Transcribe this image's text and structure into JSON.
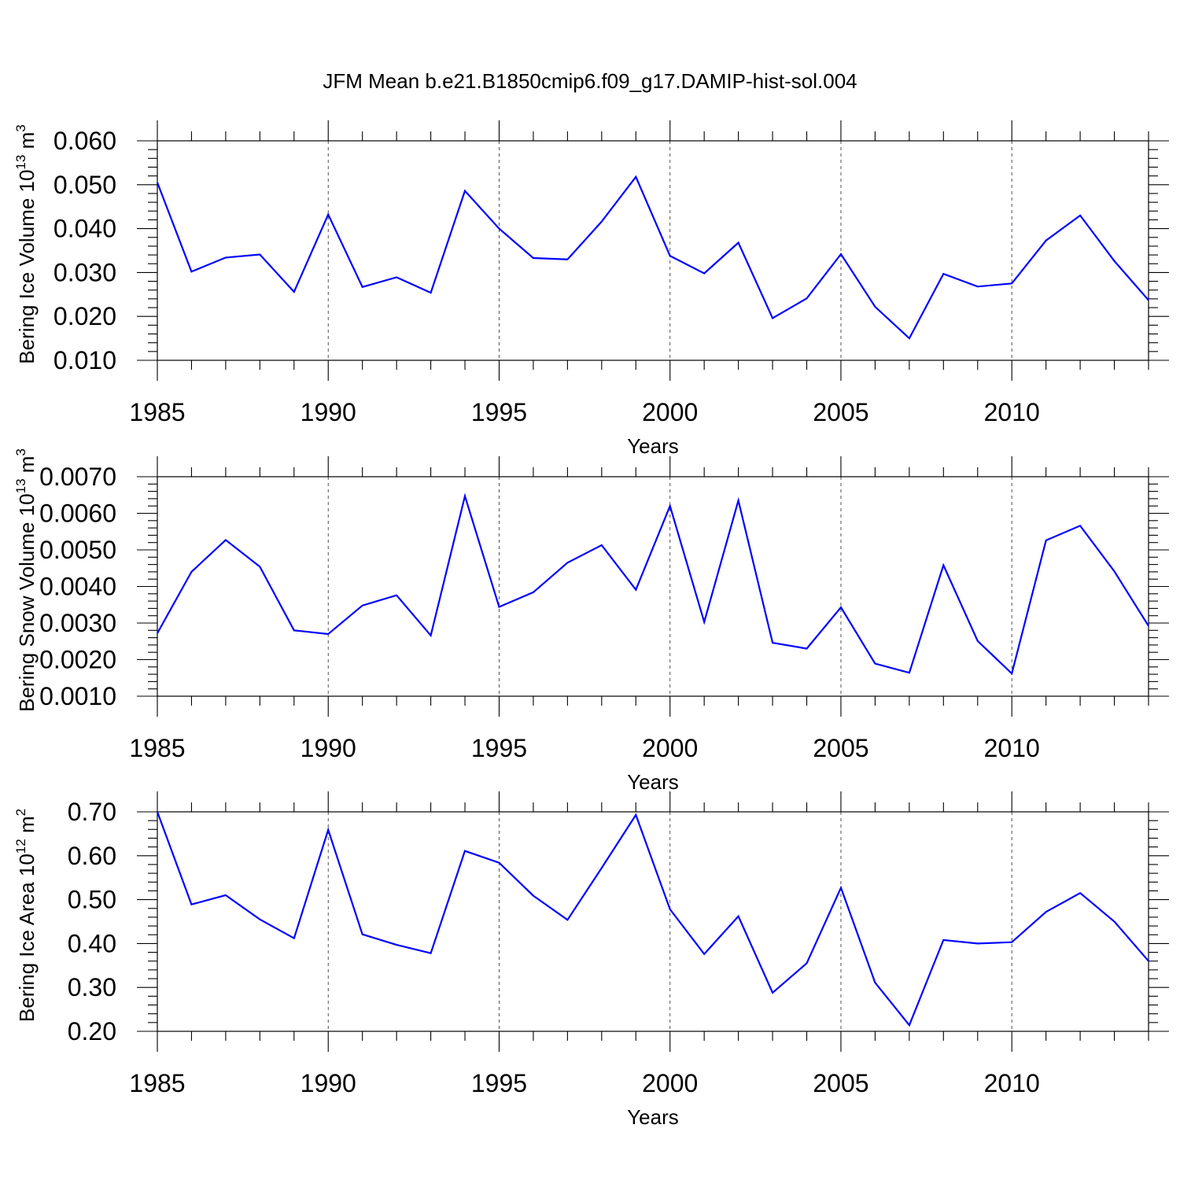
{
  "figure_title": "JFM Mean b.e21.B1850cmip6.f09_g17.DAMIP-hist-sol.004",
  "colors": {
    "line": "#0000ff",
    "axes": "#000000",
    "background": "#ffffff"
  },
  "chart_data": [
    {
      "type": "line",
      "title": "",
      "xlabel": "Years",
      "ylabel": {
        "main": "Bering Ice Volume 10",
        "exponent": "13",
        "unit": " m",
        "unit_exponent": "3"
      },
      "xlim": [
        1985,
        2014
      ],
      "ylim": [
        0.01,
        0.06
      ],
      "xticks": [
        "1985",
        "1990",
        "1995",
        "2000",
        "2005",
        "2010"
      ],
      "yticks": [
        "0.010",
        "0.020",
        "0.030",
        "0.040",
        "0.050",
        "0.060"
      ],
      "grid": "dashed vertical lines at labeled x ticks",
      "x": [
        1985,
        1986,
        1987,
        1988,
        1989,
        1990,
        1991,
        1992,
        1993,
        1994,
        1995,
        1996,
        1997,
        1998,
        1999,
        2000,
        2001,
        2002,
        2003,
        2004,
        2005,
        2006,
        2007,
        2008,
        2009,
        2010,
        2011,
        2012,
        2013,
        2014
      ],
      "series": [
        {
          "values": [
            0.0505,
            0.0302,
            0.0334,
            0.0341,
            0.0256,
            0.0432,
            0.0267,
            0.0289,
            0.0254,
            0.0486,
            0.04,
            0.0333,
            0.033,
            0.0416,
            0.0518,
            0.0338,
            0.0298,
            0.0368,
            0.0196,
            0.0241,
            0.0342,
            0.0222,
            0.015,
            0.0297,
            0.0268,
            0.0275,
            0.0373,
            0.043,
            0.0326,
            0.0237
          ]
        }
      ]
    },
    {
      "type": "line",
      "title": "",
      "xlabel": "Years",
      "ylabel": {
        "main": "Bering Snow Volume 10",
        "exponent": "13",
        "unit": " m",
        "unit_exponent": "3"
      },
      "xlim": [
        1985,
        2014
      ],
      "ylim": [
        0.001,
        0.007
      ],
      "xticks": [
        "1985",
        "1990",
        "1995",
        "2000",
        "2005",
        "2010"
      ],
      "yticks": [
        "0.0010",
        "0.0020",
        "0.0030",
        "0.0040",
        "0.0050",
        "0.0060",
        "0.0070"
      ],
      "grid": "dashed vertical lines at labeled x ticks",
      "x": [
        1985,
        1986,
        1987,
        1988,
        1989,
        1990,
        1991,
        1992,
        1993,
        1994,
        1995,
        1996,
        1997,
        1998,
        1999,
        2000,
        2001,
        2002,
        2003,
        2004,
        2005,
        2006,
        2007,
        2008,
        2009,
        2010,
        2011,
        2012,
        2013,
        2014
      ],
      "series": [
        {
          "values": [
            0.00272,
            0.0044,
            0.00527,
            0.00454,
            0.0028,
            0.0027,
            0.00348,
            0.00376,
            0.00266,
            0.00647,
            0.00344,
            0.00384,
            0.00465,
            0.00513,
            0.00391,
            0.0062,
            0.00303,
            0.00635,
            0.00246,
            0.0023,
            0.00343,
            0.00189,
            0.00164,
            0.00458,
            0.00251,
            0.00162,
            0.00526,
            0.00566,
            0.00441,
            0.00292
          ]
        }
      ]
    },
    {
      "type": "line",
      "title": "",
      "xlabel": "Years",
      "ylabel": {
        "main": "Bering Ice Area 10",
        "exponent": "12",
        "unit": " m",
        "unit_exponent": "2"
      },
      "xlim": [
        1985,
        2014
      ],
      "ylim": [
        0.2,
        0.7
      ],
      "xticks": [
        "1985",
        "1990",
        "1995",
        "2000",
        "2005",
        "2010"
      ],
      "yticks": [
        "0.20",
        "0.30",
        "0.40",
        "0.50",
        "0.60",
        "0.70"
      ],
      "grid": "dashed vertical lines at labeled x ticks",
      "x": [
        1985,
        1986,
        1987,
        1988,
        1989,
        1990,
        1991,
        1992,
        1993,
        1994,
        1995,
        1996,
        1997,
        1998,
        1999,
        2000,
        2001,
        2002,
        2003,
        2004,
        2005,
        2006,
        2007,
        2008,
        2009,
        2010,
        2011,
        2012,
        2013,
        2014
      ],
      "series": [
        {
          "values": [
            0.7,
            0.489,
            0.51,
            0.455,
            0.412,
            0.659,
            0.421,
            0.397,
            0.378,
            0.611,
            0.584,
            0.509,
            0.454,
            0.572,
            0.693,
            0.478,
            0.376,
            0.462,
            0.288,
            0.355,
            0.527,
            0.311,
            0.214,
            0.408,
            0.4,
            0.403,
            0.472,
            0.515,
            0.45,
            0.36
          ]
        }
      ]
    }
  ]
}
